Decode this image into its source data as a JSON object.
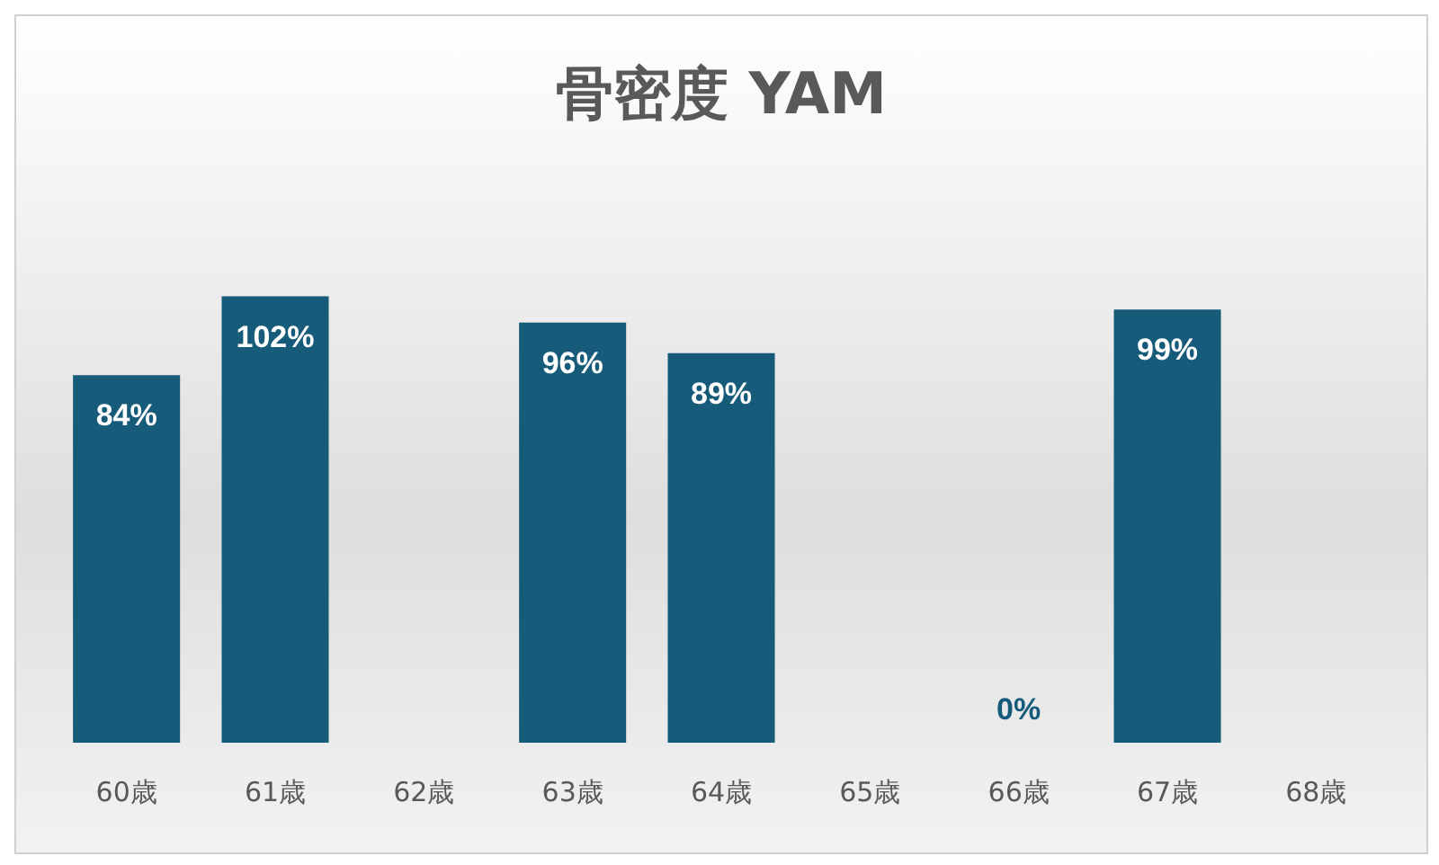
{
  "chart_data": {
    "type": "bar",
    "title": "骨密度 YAM",
    "categories": [
      "60歳",
      "61歳",
      "62歳",
      "63歳",
      "64歳",
      "65歳",
      "66歳",
      "67歳",
      "68歳"
    ],
    "values": [
      84,
      102,
      null,
      96,
      89,
      null,
      0,
      99,
      null
    ],
    "value_labels": [
      "84%",
      "102%",
      null,
      "96%",
      "89%",
      null,
      "0%",
      "99%",
      null
    ],
    "color": "#175b7a"
  }
}
